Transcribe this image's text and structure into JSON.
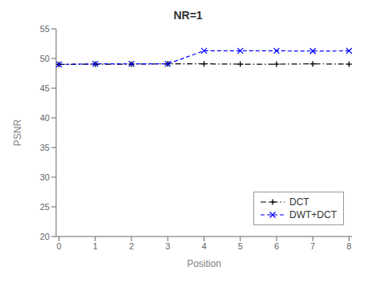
{
  "chart_data": {
    "type": "line",
    "title": "NR=1",
    "xlabel": "Position",
    "ylabel": "PSNR",
    "x": [
      0,
      1,
      2,
      3,
      4,
      5,
      6,
      7,
      8
    ],
    "series": [
      {
        "name": "DCT",
        "color": "black",
        "marker": "plus",
        "line_style": "dashdot",
        "values": [
          49.0,
          49.05,
          49.05,
          49.1,
          49.1,
          49.05,
          49.05,
          49.1,
          49.05
        ]
      },
      {
        "name": "DWT+DCT",
        "color": "blue",
        "marker": "x",
        "line_style": "dashed",
        "values": [
          49.0,
          49.1,
          49.1,
          49.1,
          51.3,
          51.3,
          51.3,
          51.25,
          51.3
        ]
      }
    ],
    "xlim": [
      -0.08,
      8.08
    ],
    "xticks": [
      0,
      1,
      2,
      3,
      4,
      5,
      6,
      7,
      8
    ],
    "ylim": [
      20,
      55
    ],
    "yticks": [
      20,
      25,
      30,
      35,
      40,
      45,
      50,
      55
    ],
    "grid": false,
    "legend": "lower right"
  }
}
